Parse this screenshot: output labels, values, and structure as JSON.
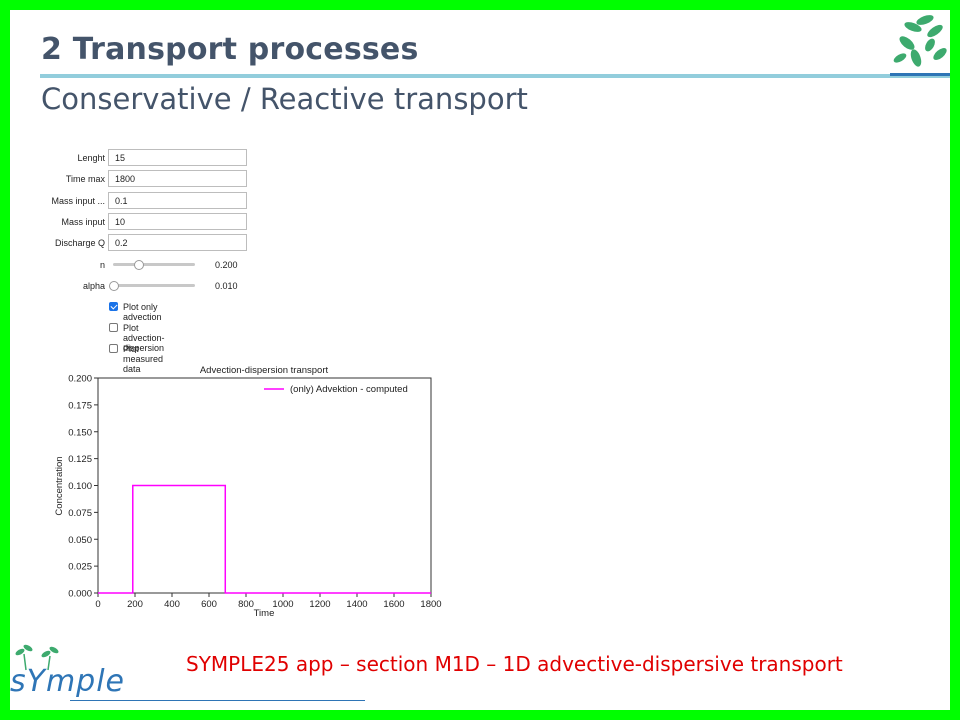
{
  "slide": {
    "title": "2  Transport processes",
    "subtitle": "Conservative / Reactive transport",
    "footer": "SYMPLE25 app – section M1D – 1D advective-dispersive transport",
    "logo_text": "sYmple"
  },
  "colors": {
    "frame": "#00ff00",
    "title": "#44546a",
    "rule": "#92cddc",
    "footer_text": "#e00000",
    "line": "#ff00ff",
    "accent": "#2e75b6",
    "leaf": "#3daa6e"
  },
  "form": {
    "inputs": [
      {
        "label": "Lenght",
        "value": "15"
      },
      {
        "label": "Time max",
        "value": "1800"
      },
      {
        "label": "Mass input ...",
        "value": "0.1"
      },
      {
        "label": "Mass input",
        "value": "10"
      },
      {
        "label": "Discharge Q",
        "value": "0.2"
      }
    ],
    "sliders": [
      {
        "label": "n",
        "value": "0.200",
        "fraction": 0.3
      },
      {
        "label": "alpha",
        "value": "0.010",
        "fraction": 0.0
      }
    ],
    "checkboxes": [
      {
        "label": "Plot only advection",
        "checked": true
      },
      {
        "label": "Plot advection-dispersion",
        "checked": false
      },
      {
        "label": "Plot measured data",
        "checked": false
      }
    ]
  },
  "chart_data": {
    "type": "line",
    "title": "Advection-dispersion transport",
    "xlabel": "Time",
    "ylabel": "Concentration",
    "xlim": [
      0,
      1800
    ],
    "ylim": [
      0,
      0.2
    ],
    "xticks": [
      0,
      200,
      400,
      600,
      800,
      1000,
      1200,
      1400,
      1600,
      1800
    ],
    "yticks": [
      "0.000",
      "0.025",
      "0.050",
      "0.075",
      "0.100",
      "0.125",
      "0.150",
      "0.175",
      "0.200"
    ],
    "legend_position": "top-right",
    "grid": false,
    "series": [
      {
        "name": "(only) Advektion - computed",
        "color": "#ff00ff",
        "x": [
          0,
          188,
          188,
          688,
          688,
          1800
        ],
        "y": [
          0,
          0,
          0.1,
          0.1,
          0,
          0
        ]
      }
    ]
  }
}
